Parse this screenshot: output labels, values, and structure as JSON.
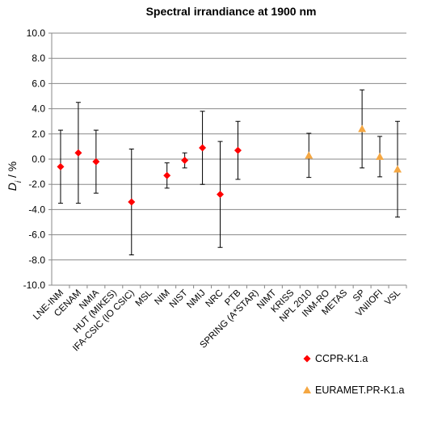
{
  "chart_data": {
    "type": "errorbar-scatter",
    "title": "Spectral irrandiance at 1900 nm",
    "ylabel": [
      "D",
      "i",
      " / %"
    ],
    "categories": [
      "LNE-INM",
      "CENAM",
      "NMIA",
      "HUT (MIKES)",
      "IFA-CSIC (IO CSIC)",
      "MSL",
      "NIM",
      "NIST",
      "NMIJ",
      "NRC",
      "PTB",
      "SPRING (A*STAR)",
      "NIMT",
      "KRISS",
      "NPL 2010",
      "INM-RO",
      "METAS",
      "SP",
      "VNIIOFI",
      "VSL"
    ],
    "series": [
      {
        "name": "CCPR-K1.a",
        "color": "#ff0000",
        "marker": "diamond",
        "values": [
          -0.6,
          0.5,
          -0.2,
          null,
          -3.4,
          null,
          -1.3,
          -0.1,
          0.9,
          -2.8,
          0.7,
          null,
          null,
          null,
          null,
          null,
          null,
          null,
          null,
          null
        ],
        "errors": [
          2.9,
          4.0,
          2.5,
          null,
          4.2,
          null,
          1.0,
          0.6,
          2.9,
          4.2,
          2.3,
          null,
          null,
          null,
          null,
          null,
          null,
          null,
          null,
          null
        ]
      },
      {
        "name": "EURAMET.PR-K1.a",
        "color": "#f5a742",
        "marker": "triangle",
        "values": [
          null,
          null,
          null,
          null,
          null,
          null,
          null,
          null,
          null,
          null,
          null,
          null,
          null,
          null,
          0.3,
          null,
          null,
          2.4,
          0.2,
          -0.8
        ],
        "errors": [
          null,
          null,
          null,
          null,
          null,
          null,
          null,
          null,
          null,
          null,
          null,
          null,
          null,
          null,
          1.75,
          null,
          null,
          3.1,
          1.6,
          3.8
        ]
      }
    ],
    "ylim": [
      -10,
      10
    ],
    "yticks": [
      {
        "value": -10,
        "label": "-10.0"
      },
      {
        "value": -8,
        "label": "-8.0"
      },
      {
        "value": -6,
        "label": "-6.0"
      },
      {
        "value": -4,
        "label": "-4.0"
      },
      {
        "value": -2,
        "label": "-2.0"
      },
      {
        "value": 0,
        "label": "0.0"
      },
      {
        "value": 2,
        "label": "2.0"
      },
      {
        "value": 4,
        "label": "4.0"
      },
      {
        "value": 6,
        "label": "6.0"
      },
      {
        "value": 8,
        "label": "8.0"
      },
      {
        "value": 10,
        "label": "10.0"
      }
    ],
    "grid": true
  }
}
